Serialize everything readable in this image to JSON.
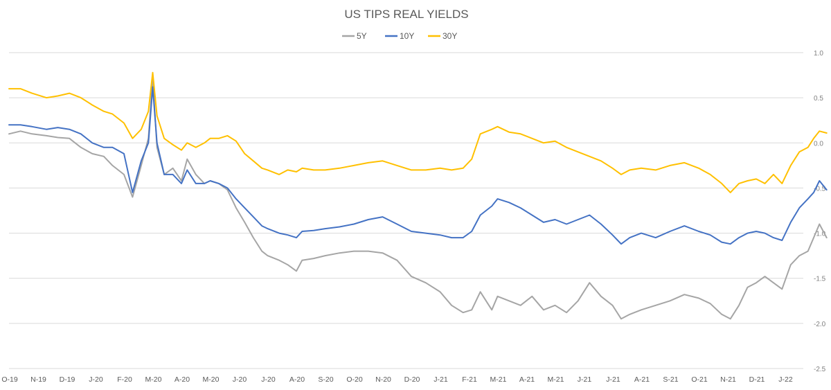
{
  "chart_data": {
    "type": "line",
    "title": "US TIPS REAL YIELDS",
    "xlabel": "",
    "ylabel": "",
    "ylim": [
      -2.5,
      1.0
    ],
    "y_axis_side": "right",
    "y_ticks": [
      1.0,
      0.5,
      0.0,
      -0.5,
      -1.0,
      -1.5,
      -2.0,
      -2.5
    ],
    "y_tick_labels": [
      "1.0",
      "0.5",
      "0.0",
      "-0.5",
      "-1.0",
      "-1.5",
      "-2.0",
      "-2.5"
    ],
    "x_tick_labels": [
      "O-19",
      "N-19",
      "D-19",
      "J-20",
      "F-20",
      "M-20",
      "A-20",
      "M-20",
      "J-20",
      "J-20",
      "A-20",
      "S-20",
      "O-20",
      "N-20",
      "D-20",
      "J-21",
      "F-21",
      "M-21",
      "A-21",
      "M-21",
      "J-21",
      "J-21",
      "A-21",
      "S-21",
      "O-21",
      "N-21",
      "D-21",
      "J-22"
    ],
    "grid": "horizontal",
    "legend_position": "top-center",
    "x_unit": "month index (0 = Oct 2019)",
    "series": [
      {
        "name": "5Y",
        "color": "#a5a5a5",
        "end_label": "-1.05",
        "points": [
          [
            0,
            0.1
          ],
          [
            0.4,
            0.13
          ],
          [
            0.8,
            0.1
          ],
          [
            1.3,
            0.08
          ],
          [
            1.7,
            0.06
          ],
          [
            2.1,
            0.05
          ],
          [
            2.5,
            -0.05
          ],
          [
            2.9,
            -0.12
          ],
          [
            3.3,
            -0.15
          ],
          [
            3.6,
            -0.25
          ],
          [
            4.0,
            -0.35
          ],
          [
            4.3,
            -0.6
          ],
          [
            4.6,
            -0.25
          ],
          [
            4.85,
            0.05
          ],
          [
            5.0,
            0.72
          ],
          [
            5.15,
            -0.05
          ],
          [
            5.4,
            -0.35
          ],
          [
            5.7,
            -0.28
          ],
          [
            6.0,
            -0.42
          ],
          [
            6.2,
            -0.18
          ],
          [
            6.5,
            -0.35
          ],
          [
            6.8,
            -0.45
          ],
          [
            7.0,
            -0.42
          ],
          [
            7.3,
            -0.45
          ],
          [
            7.6,
            -0.52
          ],
          [
            7.9,
            -0.72
          ],
          [
            8.2,
            -0.88
          ],
          [
            8.5,
            -1.05
          ],
          [
            8.8,
            -1.2
          ],
          [
            9.0,
            -1.25
          ],
          [
            9.4,
            -1.3
          ],
          [
            9.7,
            -1.35
          ],
          [
            10.0,
            -1.42
          ],
          [
            10.2,
            -1.3
          ],
          [
            10.6,
            -1.28
          ],
          [
            11.0,
            -1.25
          ],
          [
            11.5,
            -1.22
          ],
          [
            12.0,
            -1.2
          ],
          [
            12.5,
            -1.2
          ],
          [
            13.0,
            -1.22
          ],
          [
            13.5,
            -1.3
          ],
          [
            14.0,
            -1.48
          ],
          [
            14.5,
            -1.55
          ],
          [
            15.0,
            -1.65
          ],
          [
            15.4,
            -1.8
          ],
          [
            15.8,
            -1.88
          ],
          [
            16.1,
            -1.85
          ],
          [
            16.4,
            -1.65
          ],
          [
            16.8,
            -1.85
          ],
          [
            17.0,
            -1.7
          ],
          [
            17.4,
            -1.75
          ],
          [
            17.8,
            -1.8
          ],
          [
            18.2,
            -1.7
          ],
          [
            18.6,
            -1.85
          ],
          [
            19.0,
            -1.8
          ],
          [
            19.4,
            -1.88
          ],
          [
            19.8,
            -1.75
          ],
          [
            20.2,
            -1.55
          ],
          [
            20.6,
            -1.7
          ],
          [
            21.0,
            -1.8
          ],
          [
            21.3,
            -1.95
          ],
          [
            21.6,
            -1.9
          ],
          [
            22.0,
            -1.85
          ],
          [
            22.5,
            -1.8
          ],
          [
            23.0,
            -1.75
          ],
          [
            23.5,
            -1.68
          ],
          [
            24.0,
            -1.72
          ],
          [
            24.4,
            -1.78
          ],
          [
            24.8,
            -1.9
          ],
          [
            25.1,
            -1.95
          ],
          [
            25.4,
            -1.8
          ],
          [
            25.7,
            -1.6
          ],
          [
            26.0,
            -1.55
          ],
          [
            26.3,
            -1.48
          ],
          [
            26.6,
            -1.55
          ],
          [
            26.9,
            -1.62
          ],
          [
            27.2,
            -1.35
          ],
          [
            27.5,
            -1.25
          ],
          [
            27.8,
            -1.2
          ],
          [
            28.0,
            -1.05
          ],
          [
            28.2,
            -0.9
          ],
          [
            28.45,
            -1.05
          ]
        ]
      },
      {
        "name": "10Y",
        "color": "#4472c4",
        "end_label": "-0.52",
        "points": [
          [
            0,
            0.2
          ],
          [
            0.4,
            0.2
          ],
          [
            0.8,
            0.18
          ],
          [
            1.3,
            0.15
          ],
          [
            1.7,
            0.17
          ],
          [
            2.1,
            0.15
          ],
          [
            2.5,
            0.1
          ],
          [
            2.9,
            0.0
          ],
          [
            3.3,
            -0.05
          ],
          [
            3.6,
            -0.05
          ],
          [
            4.0,
            -0.12
          ],
          [
            4.3,
            -0.55
          ],
          [
            4.6,
            -0.2
          ],
          [
            4.85,
            0.0
          ],
          [
            5.0,
            0.62
          ],
          [
            5.15,
            0.0
          ],
          [
            5.4,
            -0.35
          ],
          [
            5.7,
            -0.35
          ],
          [
            6.0,
            -0.45
          ],
          [
            6.2,
            -0.3
          ],
          [
            6.5,
            -0.45
          ],
          [
            6.8,
            -0.45
          ],
          [
            7.0,
            -0.42
          ],
          [
            7.3,
            -0.45
          ],
          [
            7.6,
            -0.5
          ],
          [
            7.9,
            -0.62
          ],
          [
            8.2,
            -0.72
          ],
          [
            8.5,
            -0.82
          ],
          [
            8.8,
            -0.92
          ],
          [
            9.0,
            -0.95
          ],
          [
            9.4,
            -1.0
          ],
          [
            9.7,
            -1.02
          ],
          [
            10.0,
            -1.05
          ],
          [
            10.2,
            -0.98
          ],
          [
            10.6,
            -0.97
          ],
          [
            11.0,
            -0.95
          ],
          [
            11.5,
            -0.93
          ],
          [
            12.0,
            -0.9
          ],
          [
            12.5,
            -0.85
          ],
          [
            13.0,
            -0.82
          ],
          [
            13.5,
            -0.9
          ],
          [
            14.0,
            -0.98
          ],
          [
            14.5,
            -1.0
          ],
          [
            15.0,
            -1.02
          ],
          [
            15.4,
            -1.05
          ],
          [
            15.8,
            -1.05
          ],
          [
            16.1,
            -0.98
          ],
          [
            16.4,
            -0.8
          ],
          [
            16.8,
            -0.7
          ],
          [
            17.0,
            -0.62
          ],
          [
            17.4,
            -0.66
          ],
          [
            17.8,
            -0.72
          ],
          [
            18.2,
            -0.8
          ],
          [
            18.6,
            -0.88
          ],
          [
            19.0,
            -0.85
          ],
          [
            19.4,
            -0.9
          ],
          [
            19.8,
            -0.85
          ],
          [
            20.2,
            -0.8
          ],
          [
            20.6,
            -0.9
          ],
          [
            21.0,
            -1.02
          ],
          [
            21.3,
            -1.12
          ],
          [
            21.6,
            -1.05
          ],
          [
            22.0,
            -1.0
          ],
          [
            22.5,
            -1.05
          ],
          [
            23.0,
            -0.98
          ],
          [
            23.5,
            -0.92
          ],
          [
            24.0,
            -0.98
          ],
          [
            24.4,
            -1.02
          ],
          [
            24.8,
            -1.1
          ],
          [
            25.1,
            -1.12
          ],
          [
            25.4,
            -1.05
          ],
          [
            25.7,
            -1.0
          ],
          [
            26.0,
            -0.98
          ],
          [
            26.3,
            -1.0
          ],
          [
            26.6,
            -1.05
          ],
          [
            26.9,
            -1.08
          ],
          [
            27.2,
            -0.88
          ],
          [
            27.5,
            -0.72
          ],
          [
            27.8,
            -0.62
          ],
          [
            28.0,
            -0.55
          ],
          [
            28.2,
            -0.42
          ],
          [
            28.45,
            -0.52
          ]
        ]
      },
      {
        "name": "30Y",
        "color": "#ffc000",
        "end_label": "0.11",
        "points": [
          [
            0,
            0.6
          ],
          [
            0.4,
            0.6
          ],
          [
            0.8,
            0.55
          ],
          [
            1.3,
            0.5
          ],
          [
            1.7,
            0.52
          ],
          [
            2.1,
            0.55
          ],
          [
            2.5,
            0.5
          ],
          [
            2.9,
            0.42
          ],
          [
            3.3,
            0.35
          ],
          [
            3.6,
            0.32
          ],
          [
            4.0,
            0.22
          ],
          [
            4.3,
            0.05
          ],
          [
            4.6,
            0.15
          ],
          [
            4.85,
            0.35
          ],
          [
            5.0,
            0.78
          ],
          [
            5.15,
            0.3
          ],
          [
            5.4,
            0.05
          ],
          [
            5.7,
            -0.02
          ],
          [
            6.0,
            -0.08
          ],
          [
            6.2,
            0.0
          ],
          [
            6.5,
            -0.05
          ],
          [
            6.8,
            0.0
          ],
          [
            7.0,
            0.05
          ],
          [
            7.3,
            0.05
          ],
          [
            7.6,
            0.08
          ],
          [
            7.9,
            0.02
          ],
          [
            8.2,
            -0.12
          ],
          [
            8.5,
            -0.2
          ],
          [
            8.8,
            -0.28
          ],
          [
            9.0,
            -0.3
          ],
          [
            9.4,
            -0.35
          ],
          [
            9.7,
            -0.3
          ],
          [
            10.0,
            -0.32
          ],
          [
            10.2,
            -0.28
          ],
          [
            10.6,
            -0.3
          ],
          [
            11.0,
            -0.3
          ],
          [
            11.5,
            -0.28
          ],
          [
            12.0,
            -0.25
          ],
          [
            12.5,
            -0.22
          ],
          [
            13.0,
            -0.2
          ],
          [
            13.5,
            -0.25
          ],
          [
            14.0,
            -0.3
          ],
          [
            14.5,
            -0.3
          ],
          [
            15.0,
            -0.28
          ],
          [
            15.4,
            -0.3
          ],
          [
            15.8,
            -0.28
          ],
          [
            16.1,
            -0.18
          ],
          [
            16.4,
            0.1
          ],
          [
            16.8,
            0.15
          ],
          [
            17.0,
            0.18
          ],
          [
            17.4,
            0.12
          ],
          [
            17.8,
            0.1
          ],
          [
            18.2,
            0.05
          ],
          [
            18.6,
            0.0
          ],
          [
            19.0,
            0.02
          ],
          [
            19.4,
            -0.05
          ],
          [
            19.8,
            -0.1
          ],
          [
            20.2,
            -0.15
          ],
          [
            20.6,
            -0.2
          ],
          [
            21.0,
            -0.28
          ],
          [
            21.3,
            -0.35
          ],
          [
            21.6,
            -0.3
          ],
          [
            22.0,
            -0.28
          ],
          [
            22.5,
            -0.3
          ],
          [
            23.0,
            -0.25
          ],
          [
            23.5,
            -0.22
          ],
          [
            24.0,
            -0.28
          ],
          [
            24.4,
            -0.35
          ],
          [
            24.8,
            -0.45
          ],
          [
            25.1,
            -0.55
          ],
          [
            25.4,
            -0.45
          ],
          [
            25.7,
            -0.42
          ],
          [
            26.0,
            -0.4
          ],
          [
            26.3,
            -0.45
          ],
          [
            26.6,
            -0.35
          ],
          [
            26.9,
            -0.45
          ],
          [
            27.2,
            -0.25
          ],
          [
            27.5,
            -0.1
          ],
          [
            27.8,
            -0.05
          ],
          [
            28.0,
            0.05
          ],
          [
            28.2,
            0.13
          ],
          [
            28.45,
            0.11
          ]
        ]
      }
    ]
  }
}
